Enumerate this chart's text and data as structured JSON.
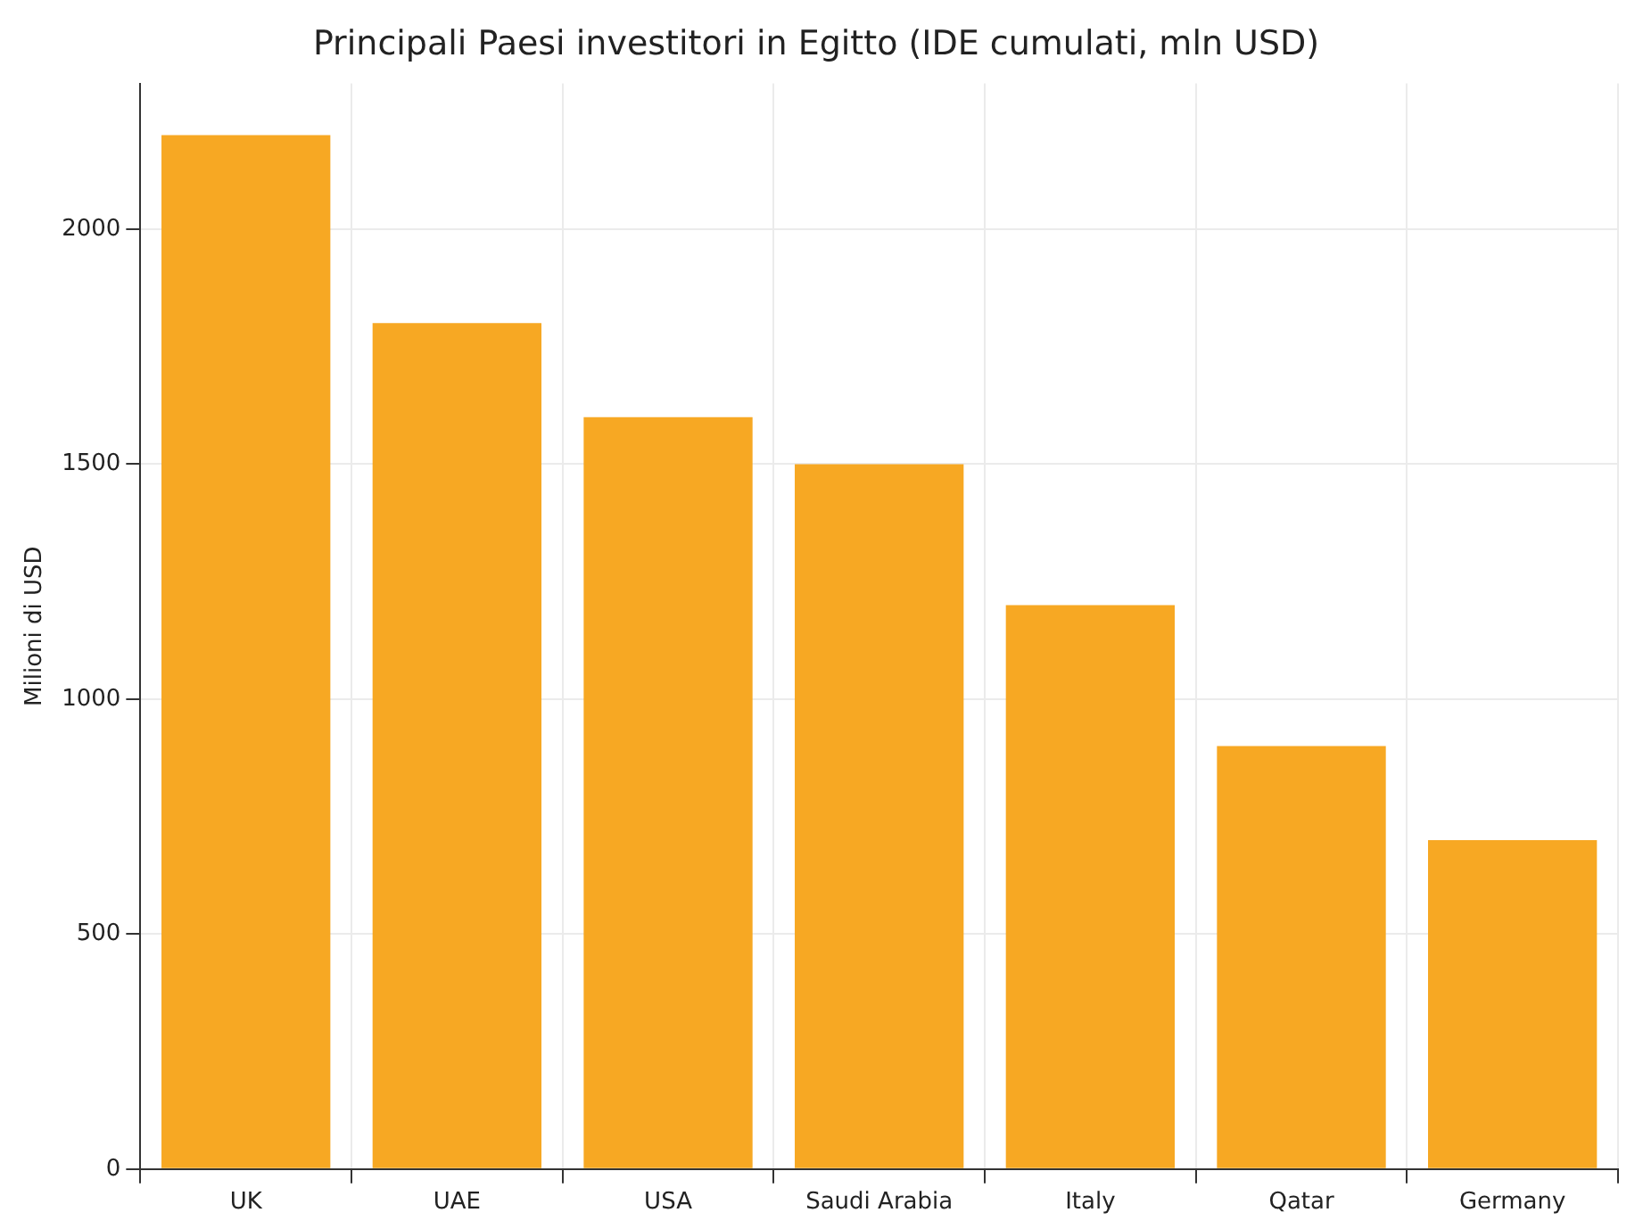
{
  "chart_data": {
    "type": "bar",
    "title": "Principali Paesi investitori in Egitto (IDE cumulati, mln USD)",
    "ylabel": "Milioni di USD",
    "categories": [
      "UK",
      "UAE",
      "USA",
      "Saudi Arabia",
      "Italy",
      "Qatar",
      "Germany"
    ],
    "values": [
      2200,
      1800,
      1600,
      1500,
      1200,
      900,
      700
    ],
    "color": "#f7a823",
    "ylim": [
      0,
      2310
    ],
    "yticks": [
      0,
      500,
      1000,
      1500,
      2000
    ],
    "grid": true,
    "legend": false
  }
}
